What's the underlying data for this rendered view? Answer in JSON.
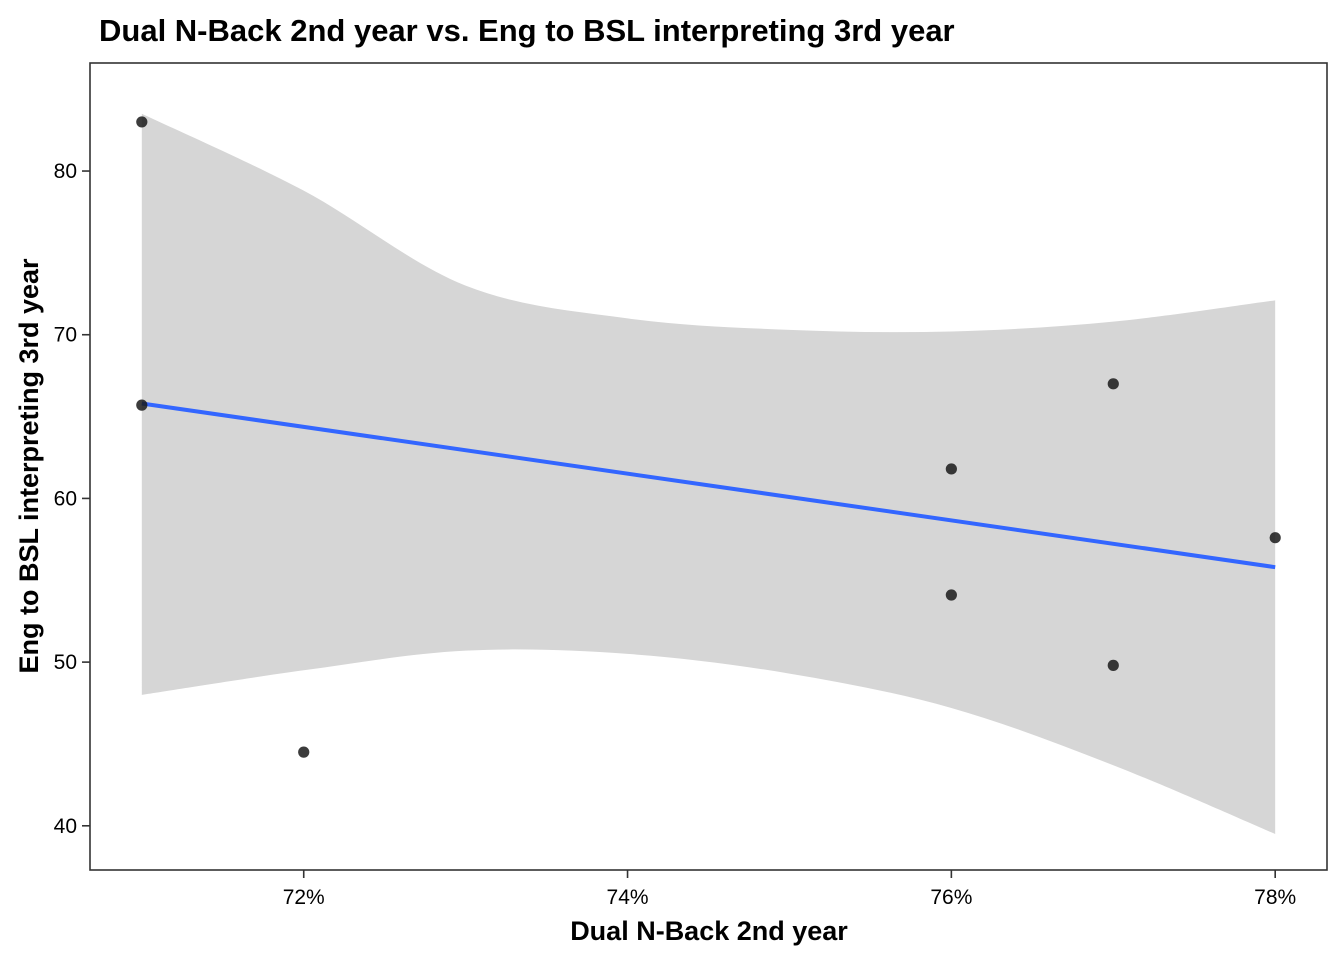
{
  "chart_data": {
    "type": "scatter",
    "title": "Dual N-Back 2nd year vs. Eng to BSL interpreting 3rd year",
    "xlabel": "Dual N-Back 2nd year",
    "ylabel": "Eng to BSL interpreting 3rd year",
    "xlim": [
      0.7068,
      0.7832
    ],
    "ylim": [
      37.3,
      86.6
    ],
    "x_ticks": [
      0.72,
      0.74,
      0.76,
      0.78
    ],
    "x_tick_labels": [
      "72%",
      "74%",
      "76%",
      "78%"
    ],
    "y_ticks": [
      40,
      50,
      60,
      70,
      80
    ],
    "y_tick_labels": [
      "40",
      "50",
      "60",
      "70",
      "80"
    ],
    "grid": false,
    "legend": "none",
    "points": [
      {
        "x": 0.71,
        "y": 83.0
      },
      {
        "x": 0.71,
        "y": 65.7
      },
      {
        "x": 0.72,
        "y": 44.5
      },
      {
        "x": 0.76,
        "y": 61.8
      },
      {
        "x": 0.76,
        "y": 54.1
      },
      {
        "x": 0.77,
        "y": 67.0
      },
      {
        "x": 0.77,
        "y": 49.8
      },
      {
        "x": 0.78,
        "y": 57.6
      }
    ],
    "trend_line": {
      "method": "lm",
      "x": [
        0.71,
        0.78
      ],
      "y": [
        65.8,
        55.8
      ]
    },
    "confidence_band": {
      "x": [
        0.71,
        0.72,
        0.73,
        0.74,
        0.75,
        0.76,
        0.77,
        0.78
      ],
      "lower": [
        48.0,
        49.5,
        50.7,
        50.5,
        49.3,
        47.2,
        43.7,
        39.5
      ],
      "upper": [
        83.5,
        78.8,
        73.0,
        71.0,
        70.3,
        70.2,
        70.8,
        72.1
      ]
    },
    "colors": {
      "point": "#1a1a1a",
      "trend_line": "#3366ff",
      "band": "#d6d6d6",
      "panel_border": "#333333"
    }
  }
}
